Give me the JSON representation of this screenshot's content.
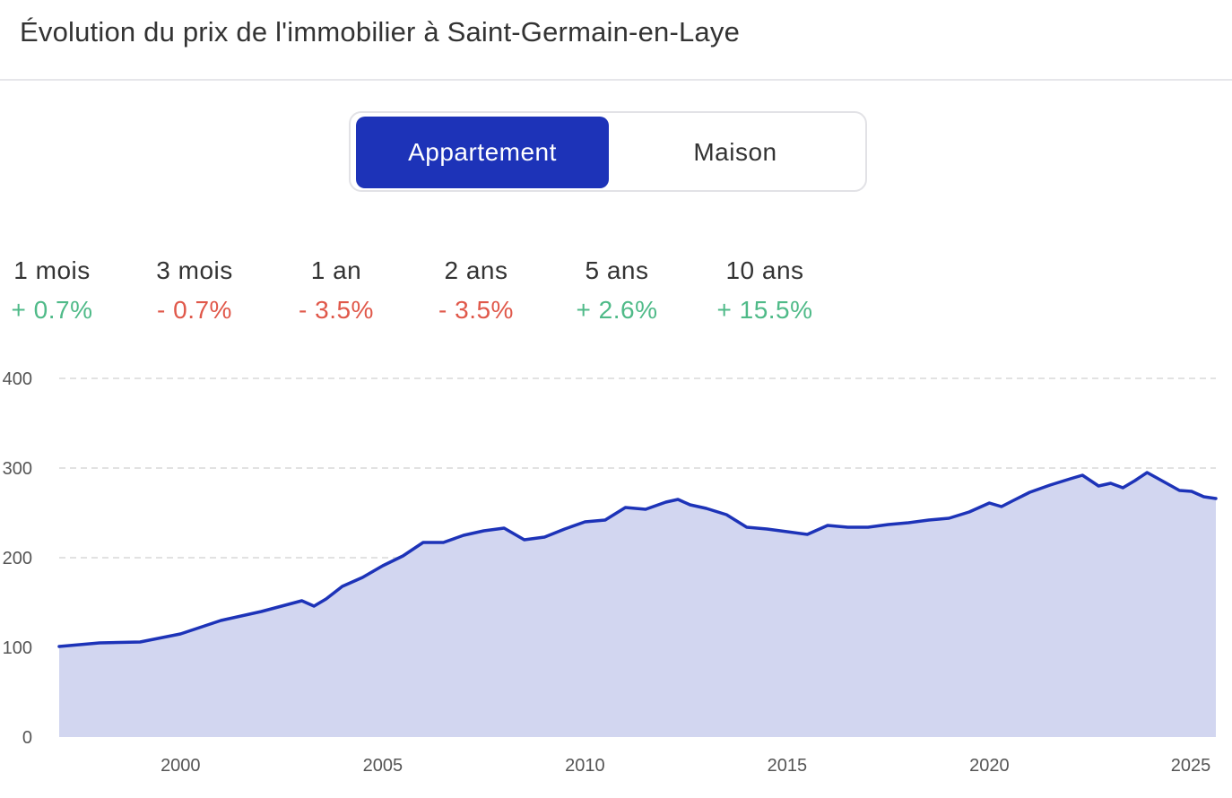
{
  "header": {
    "title": "Évolution du prix de l'immobilier à Saint-Germain-en-Laye"
  },
  "toggle": {
    "options": [
      "Appartement",
      "Maison"
    ],
    "selected": "Appartement"
  },
  "stats": [
    {
      "label": "1 mois",
      "value": "+ 0.7%",
      "trend": "up"
    },
    {
      "label": "3 mois",
      "value": "- 0.7%",
      "trend": "down"
    },
    {
      "label": "1 an",
      "value": "- 3.5%",
      "trend": "down"
    },
    {
      "label": "2 ans",
      "value": "- 3.5%",
      "trend": "down"
    },
    {
      "label": "5 ans",
      "value": "+ 2.6%",
      "trend": "up"
    },
    {
      "label": "10 ans",
      "value": "+ 15.5%",
      "trend": "up"
    }
  ],
  "colors": {
    "accent": "#1d33b8",
    "area_fill": "#d2d6f0",
    "positive": "#4fba88",
    "negative": "#e0584a",
    "grid": "#d8d8d8"
  },
  "chart_data": {
    "type": "area",
    "title": "",
    "xlabel": "",
    "ylabel": "",
    "xlim": [
      1997,
      2025.6
    ],
    "ylim": [
      0,
      400
    ],
    "yticks": [
      0,
      100,
      200,
      300,
      400
    ],
    "ytick_labels": [
      "0",
      "100",
      "200",
      "300",
      "400"
    ],
    "xticks": [
      2000,
      2005,
      2010,
      2015,
      2020,
      2025
    ],
    "xtick_labels": [
      "2000",
      "2005",
      "2010",
      "2015",
      "2020",
      "2025"
    ],
    "grid": true,
    "grid_style": "dashed-horizontal",
    "series": [
      {
        "x": [
          1997.0,
          1998.0,
          1999.0,
          2000.0,
          2001.0,
          2002.0,
          2003.0,
          2003.3,
          2003.6,
          2004.0,
          2004.5,
          2005.0,
          2005.5,
          2006.0,
          2006.5,
          2007.0,
          2007.5,
          2008.0,
          2008.5,
          2009.0,
          2009.5,
          2010.0,
          2010.5,
          2011.0,
          2011.5,
          2012.0,
          2012.3,
          2012.6,
          2013.0,
          2013.5,
          2014.0,
          2014.5,
          2015.0,
          2015.5,
          2016.0,
          2016.5,
          2017.0,
          2017.5,
          2018.0,
          2018.5,
          2019.0,
          2019.5,
          2020.0,
          2020.3,
          2020.6,
          2021.0,
          2021.5,
          2022.0,
          2022.3,
          2022.7,
          2023.0,
          2023.3,
          2023.6,
          2023.9,
          2024.3,
          2024.7,
          2025.0,
          2025.3,
          2025.6
        ],
        "values": [
          101,
          105,
          106,
          115,
          130,
          140,
          152,
          146,
          154,
          168,
          178,
          191,
          202,
          217,
          217,
          225,
          230,
          233,
          220,
          223,
          232,
          240,
          242,
          256,
          254,
          262,
          265,
          259,
          255,
          248,
          234,
          232,
          229,
          226,
          236,
          234,
          234,
          237,
          239,
          242,
          244,
          251,
          261,
          257,
          264,
          273,
          281,
          288,
          292,
          280,
          283,
          278,
          286,
          295,
          285,
          275,
          274,
          268,
          266
        ]
      }
    ]
  }
}
